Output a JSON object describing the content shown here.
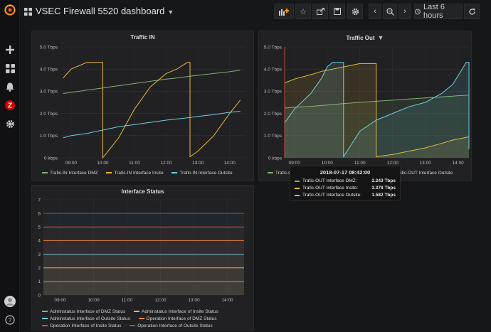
{
  "header": {
    "title": "VSEC Firewall 5520 dashboard",
    "time_range": "Last 6 hours"
  },
  "sidebar": {
    "items": [
      "plus-icon",
      "dashboards-icon",
      "alerting-icon",
      "zabbix-icon",
      "configuration-icon"
    ],
    "zabbix_letter": "Z",
    "help_label": "?"
  },
  "colors": {
    "green": "#7eb26d",
    "yellow": "#eab839",
    "cyan": "#6ed0e0",
    "orange": "#ef843c",
    "red": "#e24d42",
    "blue": "#1f78c1"
  },
  "panels": {
    "traffic_in": {
      "title": "Traffic IN",
      "legend": [
        "Trafic-IN Interface DMZ",
        "Trafic-IN Interface Insite",
        "Trafic-IN Interface Outsite"
      ]
    },
    "traffic_out": {
      "title": "Traffic Out",
      "legend": [
        "Trafic-OUT Interface DMZ",
        "Trafic-OUT Interface Insite",
        "Trafic-OUT Interface Outsite"
      ],
      "legend_visible": [
        "Trafic-O",
        "Trafic-OUT Interface Outsite"
      ]
    },
    "interface_status": {
      "title": "Interface Status",
      "legend": [
        "Adminstatus Interface of DMZ Status",
        "Adminstatus Interface of Insite Status",
        "Adminstatus Interface of Outsite Status",
        "Operation Interface of DMZ Status",
        "Operation Interface of Insite Status",
        "Operation Interface of Outsite Status"
      ]
    }
  },
  "tooltip": {
    "time": "2018-07-17 08:42:00",
    "rows": [
      {
        "name": "Trafic-OUT Interface DMZ:",
        "value": "2.243 Tbps"
      },
      {
        "name": "Trafic-OUT Interface Insite:",
        "value": "3.378 Tbps"
      },
      {
        "name": "Trafic-OUT Interface Outsite:",
        "value": "1.582 Tbps"
      }
    ]
  },
  "chart_data": [
    {
      "type": "line",
      "title": "Traffic IN",
      "x": [
        "08:45",
        "09:00",
        "09:30",
        "10:00",
        "10:10",
        "10:20",
        "10:30",
        "11:00",
        "11:30",
        "12:00",
        "12:20",
        "12:40",
        "12:45",
        "13:00",
        "13:30",
        "14:00",
        "14:20"
      ],
      "x_ticks": [
        "09:00",
        "10:00",
        "11:00",
        "12:00",
        "13:00",
        "14:00"
      ],
      "y_ticks": [
        "0 kbps",
        "1.0 Tbps",
        "2.0 Tbps",
        "3.0 Tbps",
        "4.0 Tbps",
        "5.0 Tbps"
      ],
      "ylim": [
        0,
        5
      ],
      "series": [
        {
          "name": "Trafic-IN Interface DMZ",
          "color": "#7eb26d",
          "values": [
            2.9,
            2.95,
            3.05,
            3.15,
            3.18,
            3.22,
            3.25,
            3.35,
            3.45,
            3.55,
            3.6,
            3.66,
            3.68,
            3.72,
            3.8,
            3.88,
            3.95
          ]
        },
        {
          "name": "Trafic-IN Interface Insite",
          "color": "#eab839",
          "values": [
            3.6,
            4.0,
            4.3,
            0.0,
            0.3,
            0.6,
            0.9,
            2.2,
            3.2,
            3.8,
            4.0,
            4.3,
            0.05,
            0.3,
            1.0,
            2.0,
            2.6
          ]
        },
        {
          "name": "Trafic-IN Interface Outsite",
          "color": "#6ed0e0",
          "values": [
            0.9,
            1.0,
            1.1,
            1.25,
            1.3,
            1.35,
            1.4,
            1.5,
            1.6,
            1.7,
            1.75,
            1.8,
            1.82,
            1.87,
            1.95,
            2.05,
            2.1
          ]
        }
      ]
    },
    {
      "type": "area",
      "title": "Traffic Out",
      "x": [
        "08:42",
        "09:00",
        "09:30",
        "09:50",
        "10:00",
        "10:10",
        "10:30",
        "11:00",
        "11:30",
        "12:00",
        "12:30",
        "13:00",
        "13:30",
        "13:50",
        "14:00",
        "14:15",
        "14:20"
      ],
      "x_ticks": [
        "09:00",
        "10:00",
        "11:00",
        "12:00",
        "13:00",
        "14:00"
      ],
      "y_ticks": [
        "0 kbps",
        "1.0 Tbps",
        "2.0 Tbps",
        "3.0 Tbps",
        "4.0 Tbps",
        "5.0 Tbps"
      ],
      "ylim": [
        0,
        5
      ],
      "series": [
        {
          "name": "Trafic-OUT Interface DMZ",
          "color": "#7eb26d",
          "values": [
            2.243,
            2.28,
            2.32,
            2.36,
            2.38,
            2.4,
            2.45,
            2.5,
            2.55,
            2.6,
            2.65,
            2.7,
            2.75,
            2.78,
            2.8,
            2.82,
            2.83
          ]
        },
        {
          "name": "Trafic-OUT Interface Insite",
          "color": "#eab839",
          "values": [
            3.378,
            3.55,
            3.75,
            3.9,
            3.95,
            4.0,
            4.1,
            4.25,
            0.05,
            0.15,
            0.3,
            0.45,
            0.65,
            0.8,
            0.85,
            0.92,
            0.95
          ]
        },
        {
          "name": "Trafic-OUT Interface Outsite",
          "color": "#6ed0e0",
          "values": [
            1.582,
            2.2,
            2.9,
            3.6,
            4.1,
            4.3,
            0.05,
            1.2,
            1.7,
            2.0,
            2.3,
            2.5,
            2.9,
            3.3,
            3.7,
            4.3,
            0.4
          ]
        }
      ]
    },
    {
      "type": "line",
      "title": "Interface Status",
      "x_ticks": [
        "09:00",
        "10:00",
        "11:00",
        "12:00",
        "13:00",
        "14:00"
      ],
      "y_ticks": [
        "0",
        "1",
        "2",
        "3",
        "4",
        "5",
        "6",
        "7"
      ],
      "ylim": [
        0,
        7
      ],
      "series": [
        {
          "name": "Adminstatus Interface of DMZ Status",
          "color": "#7eb26d",
          "value": 1
        },
        {
          "name": "Adminstatus Interface of Insite Status",
          "color": "#eab839",
          "value": 2
        },
        {
          "name": "Adminstatus Interface of Outsite Status",
          "color": "#6ed0e0",
          "value": 3
        },
        {
          "name": "Operation Interface of DMZ Status",
          "color": "#ef843c",
          "value": 4
        },
        {
          "name": "Operation Interface of Insite Status",
          "color": "#e24d42",
          "value": 5
        },
        {
          "name": "Operation Interface of Outsite Status",
          "color": "#1f78c1",
          "value": 6
        }
      ]
    }
  ]
}
